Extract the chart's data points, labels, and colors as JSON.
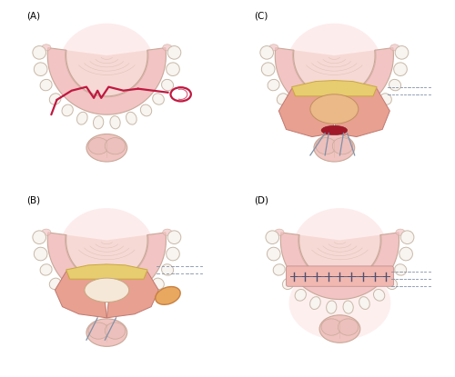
{
  "bg_color": "#ffffff",
  "panel_labels": [
    "(A)",
    "(B)",
    "(C)",
    "(D)"
  ],
  "arch_fill": "#f2c4c4",
  "arch_stroke": "#c8a898",
  "tooth_fill": "#f8f4f0",
  "tooth_stroke": "#c8b8a8",
  "gum_fill": "#e8b8b0",
  "palate_fill": "#f0c8c0",
  "yellow_fill": "#e8cc70",
  "yellow_stroke": "#c8a840",
  "orange_fill": "#e8a860",
  "orange_stroke": "#c88040",
  "red_cut": "#c01840",
  "pink_flap": "#e09888",
  "pink_flap_stroke": "#c07860",
  "suture_color": "#505070",
  "needle_gray": "#8090a8",
  "pink_glow": "#f8c0c0",
  "chin_fill": "#f0c0c0",
  "exposed_pink": "#e8a898",
  "dark_red": "#a01828"
}
